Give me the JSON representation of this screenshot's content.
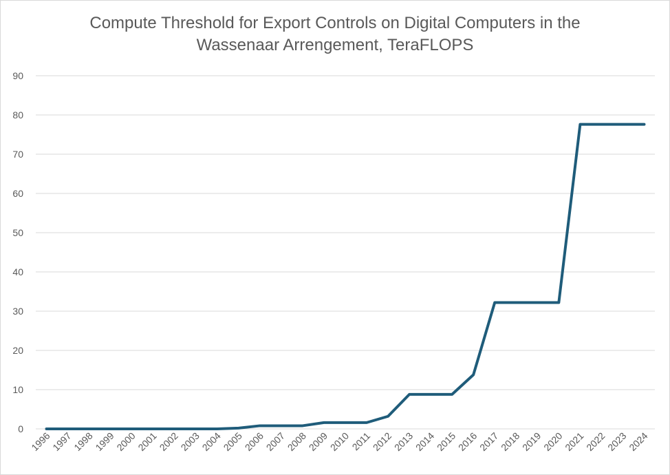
{
  "chart_data": {
    "type": "line",
    "title_lines": [
      "Compute Threshold for Export Controls on Digital Computers in the",
      "Wassenaar Arrengement, TeraFLOPS"
    ],
    "xlabel": "",
    "ylabel": "",
    "ylim": [
      0,
      90
    ],
    "yticks": [
      0,
      10,
      20,
      30,
      40,
      50,
      60,
      70,
      80,
      90
    ],
    "categories": [
      "1996",
      "1997",
      "1998",
      "1999",
      "2000",
      "2001",
      "2002",
      "2003",
      "2004",
      "2005",
      "2006",
      "2007",
      "2008",
      "2009",
      "2010",
      "2011",
      "2012",
      "2013",
      "2014",
      "2015",
      "2016",
      "2017",
      "2018",
      "2019",
      "2020",
      "2021",
      "2022",
      "2023",
      "2024"
    ],
    "series": [
      {
        "values": [
          0.0,
          0.0,
          0.0,
          0.0,
          0.0,
          0.0,
          0.0,
          0.0,
          0.0,
          0.2,
          0.8,
          0.8,
          0.8,
          1.6,
          1.6,
          1.6,
          3.2,
          8.8,
          8.8,
          8.8,
          13.8,
          32.2,
          32.2,
          32.2,
          32.2,
          77.6,
          77.6,
          77.6,
          77.6
        ],
        "color": "#1f5c7a"
      }
    ],
    "grid": true,
    "legend": "none"
  }
}
